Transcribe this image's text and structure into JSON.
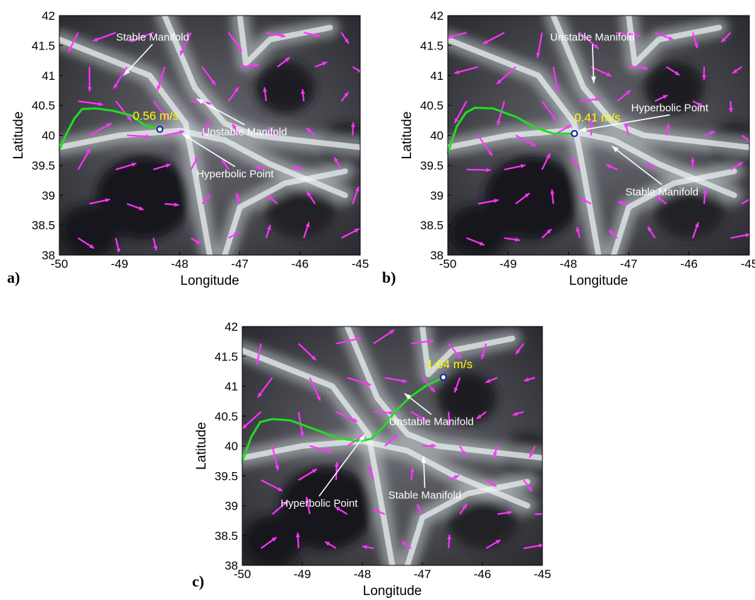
{
  "chart_data": [
    {
      "panel": "a)",
      "type": "scatter",
      "xlabel": "Longitude",
      "ylabel": "Latitude",
      "xlim": [
        -50,
        -45
      ],
      "ylim": [
        38,
        42
      ],
      "xticks": [
        "-50",
        "-49",
        "-48",
        "-47",
        "-46",
        "-45"
      ],
      "yticks": [
        "38",
        "38.5",
        "39",
        "39.5",
        "40",
        "40.5",
        "41",
        "41.5",
        "42"
      ],
      "colors": {
        "trajectory": "#22dd22",
        "vectors": "#ff33ff",
        "speed_label": "#ffff00",
        "marker": "#1a2a9a"
      },
      "speed_label": "0.56 m/s",
      "speed_label_at": {
        "x": -48.78,
        "y": 40.26
      },
      "trajectory": {
        "x": [
          -50,
          -49.87,
          -49.75,
          -49.62,
          -49.4,
          -49.1,
          -48.8,
          -48.6,
          -48.33
        ],
        "y": [
          39.75,
          40.05,
          40.28,
          40.44,
          40.45,
          40.41,
          40.33,
          40.18,
          40.1
        ]
      },
      "marker": {
        "x": -48.33,
        "y": 40.1
      },
      "annotations": [
        {
          "text": "Stable Manifold",
          "text_at": {
            "x": -48.45,
            "y": 41.58
          },
          "arrow_to": {
            "x": -48.93,
            "y": 41.0
          }
        },
        {
          "text": "Unstable Manifold",
          "text_at": {
            "x": -46.92,
            "y": 40.0
          },
          "arrow_to": {
            "x": -47.72,
            "y": 40.61
          }
        },
        {
          "text": "Hyperbolic Point",
          "text_at": {
            "x": -47.08,
            "y": 39.3
          },
          "arrow_to": {
            "x": -47.95,
            "y": 40.02
          }
        }
      ]
    },
    {
      "panel": "b)",
      "type": "scatter",
      "xlabel": "Longitude",
      "ylabel": "Latitude",
      "xlim": [
        -50,
        -45
      ],
      "ylim": [
        38,
        42
      ],
      "xticks": [
        "-50",
        "-49",
        "-48",
        "-47",
        "-46",
        "-45"
      ],
      "yticks": [
        "38",
        "38.5",
        "39",
        "39.5",
        "40",
        "40.5",
        "41",
        "41.5",
        "42"
      ],
      "colors": {
        "trajectory": "#22dd22",
        "vectors": "#ff33ff",
        "speed_label": "#ffff00",
        "marker": "#1a2a9a"
      },
      "speed_label": "0.41 m/s",
      "speed_label_at": {
        "x": -47.9,
        "y": 40.23
      },
      "trajectory": {
        "x": [
          -50,
          -49.85,
          -49.7,
          -49.55,
          -49.25,
          -48.85,
          -48.55,
          -48.25,
          -47.9
        ],
        "y": [
          39.7,
          40.15,
          40.38,
          40.46,
          40.45,
          40.3,
          40.13,
          40.03,
          40.03
        ]
      },
      "marker": {
        "x": -47.9,
        "y": 40.03
      },
      "annotations": [
        {
          "text": "Unstable Manifold",
          "text_at": {
            "x": -47.6,
            "y": 41.58
          },
          "arrow_to": {
            "x": -47.58,
            "y": 40.87
          }
        },
        {
          "text": "Hyperbolic Point",
          "text_at": {
            "x": -46.32,
            "y": 40.4
          },
          "arrow_to": {
            "x": -47.82,
            "y": 40.08
          }
        },
        {
          "text": "Stable Manifold",
          "text_at": {
            "x": -46.45,
            "y": 39.0
          },
          "arrow_to": {
            "x": -47.28,
            "y": 39.82
          }
        }
      ]
    },
    {
      "panel": "c)",
      "type": "scatter",
      "xlabel": "Longitude",
      "ylabel": "Latitude",
      "xlim": [
        -50,
        -45
      ],
      "ylim": [
        38,
        42
      ],
      "xticks": [
        "-50",
        "-49",
        "-48",
        "-47",
        "-46",
        "-45"
      ],
      "yticks": [
        "38",
        "38.5",
        "39",
        "39.5",
        "40",
        "40.5",
        "41",
        "41.5",
        "42"
      ],
      "colors": {
        "trajectory": "#22dd22",
        "vectors": "#ff33ff",
        "speed_label": "#ffff00",
        "marker": "#1a2a9a"
      },
      "speed_label": "1.04 m/s",
      "speed_label_at": {
        "x": -46.93,
        "y": 41.3
      },
      "trajectory": {
        "x": [
          -50,
          -49.85,
          -49.7,
          -49.5,
          -49.2,
          -48.8,
          -48.4,
          -48.05,
          -47.85,
          -47.65,
          -47.45,
          -47.2,
          -46.95,
          -46.65
        ],
        "y": [
          39.73,
          40.15,
          40.4,
          40.45,
          40.43,
          40.28,
          40.13,
          40.08,
          40.12,
          40.32,
          40.58,
          40.82,
          41.0,
          41.15
        ]
      },
      "marker": {
        "x": -46.65,
        "y": 41.15
      },
      "annotations": [
        {
          "text": "Unstable Manifold",
          "text_at": {
            "x": -46.85,
            "y": 40.35
          },
          "arrow_to": {
            "x": -47.3,
            "y": 40.88
          }
        },
        {
          "text": "Stable Manifold",
          "text_at": {
            "x": -46.96,
            "y": 39.12
          },
          "arrow_to": {
            "x": -46.98,
            "y": 39.83
          }
        },
        {
          "text": "Hyperbolic Point",
          "text_at": {
            "x": -48.72,
            "y": 38.98
          },
          "arrow_to": {
            "x": -47.95,
            "y": 40.2
          }
        }
      ]
    }
  ]
}
